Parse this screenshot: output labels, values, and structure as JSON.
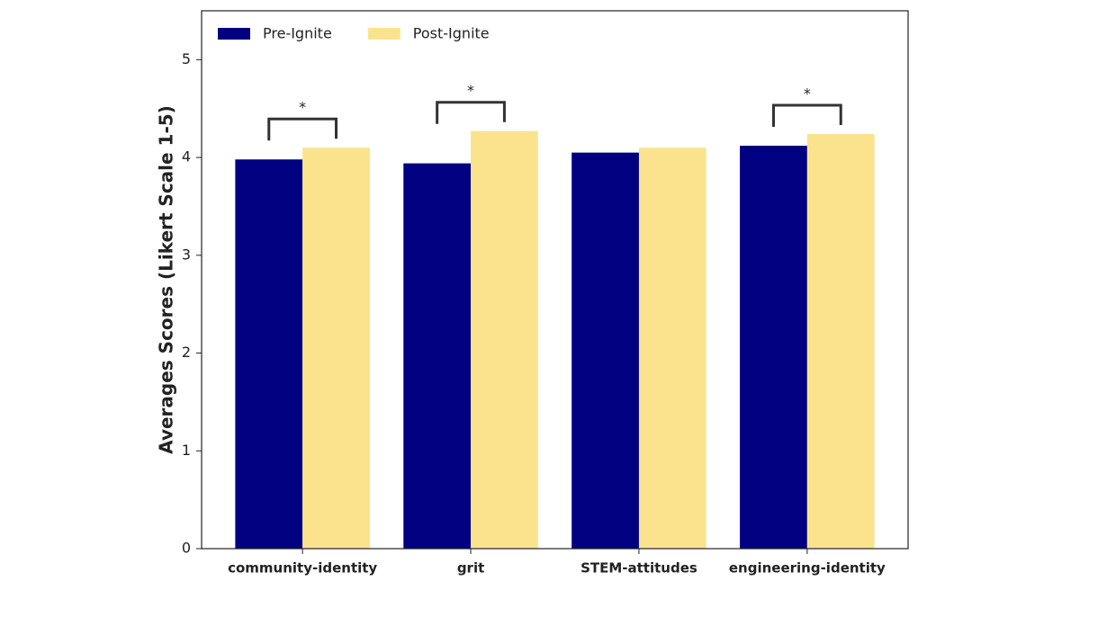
{
  "chart_data": {
    "type": "bar",
    "y_label": "Averages Scores (Likert Scale 1-5)",
    "categories": [
      "community-identity",
      "grit",
      "STEM-attitudes",
      "engineering-identity"
    ],
    "series": [
      {
        "name": "Pre-Ignite",
        "color": "#000080",
        "values": [
          3.98,
          3.94,
          4.05,
          4.12
        ]
      },
      {
        "name": "Post-Ignite",
        "color": "#fbe38e",
        "values": [
          4.1,
          4.27,
          4.1,
          4.24
        ]
      }
    ],
    "significance": [
      "*",
      "*",
      null,
      "*"
    ],
    "ylim": [
      0,
      5.5
    ],
    "yticks": [
      0,
      1,
      2,
      3,
      4,
      5
    ],
    "legend": "upper-left",
    "grid": false
  }
}
